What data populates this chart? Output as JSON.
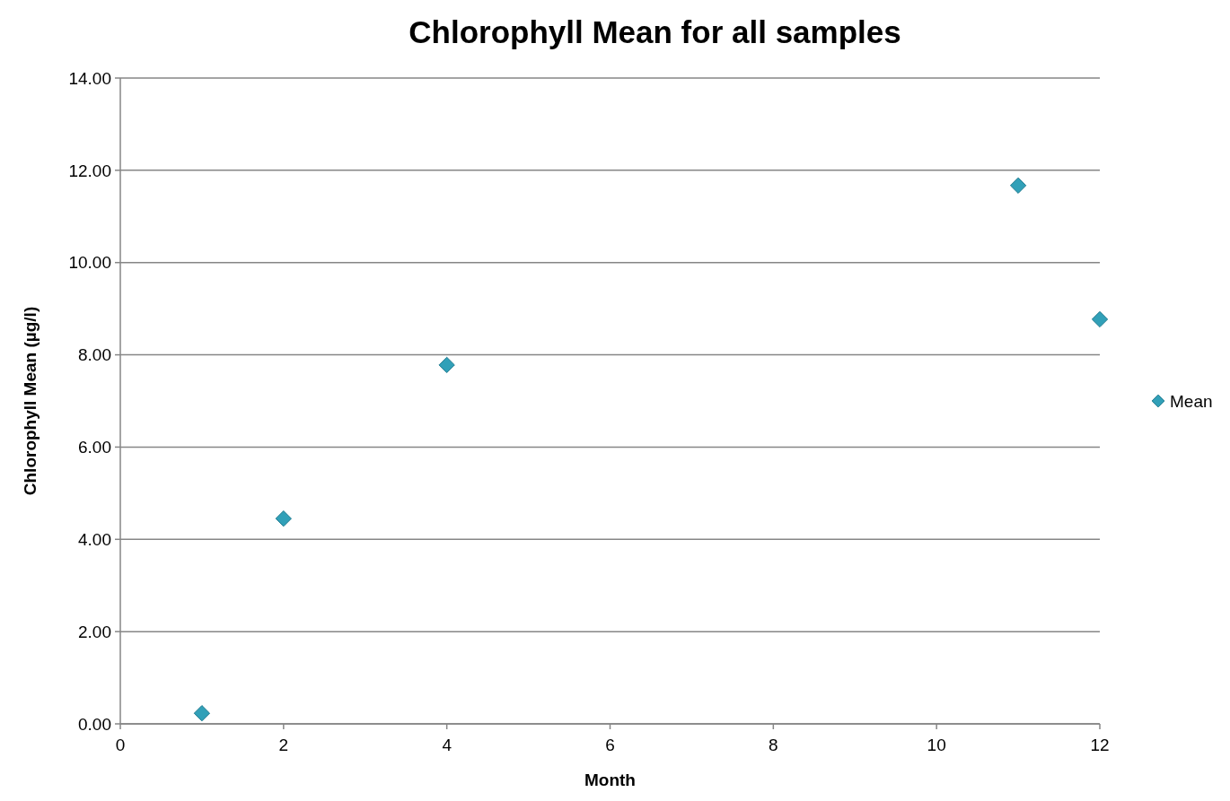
{
  "chart_data": {
    "type": "scatter",
    "title": "Chlorophyll Mean for all samples",
    "xlabel": "Month",
    "ylabel": "Chlorophyll Mean (µg/l)",
    "x": [
      1,
      2,
      4,
      11,
      12
    ],
    "series": [
      {
        "name": "Mean",
        "color": "#31a0b8",
        "values": [
          0.23,
          4.45,
          7.78,
          11.67,
          8.77
        ]
      }
    ],
    "xlim": [
      0,
      12
    ],
    "xticks": [
      0,
      2,
      4,
      6,
      8,
      10,
      12
    ],
    "ylim": [
      0,
      14
    ],
    "yticks": [
      {
        "value": 0,
        "label": "0.00"
      },
      {
        "value": 2,
        "label": "2.00"
      },
      {
        "value": 4,
        "label": "4.00"
      },
      {
        "value": 6,
        "label": "6.00"
      },
      {
        "value": 8,
        "label": "8.00"
      },
      {
        "value": 10,
        "label": "10.00"
      },
      {
        "value": 12,
        "label": "12.00"
      },
      {
        "value": 14,
        "label": "14.00"
      }
    ],
    "grid": "y",
    "legend": "right",
    "marker": "diamond"
  }
}
